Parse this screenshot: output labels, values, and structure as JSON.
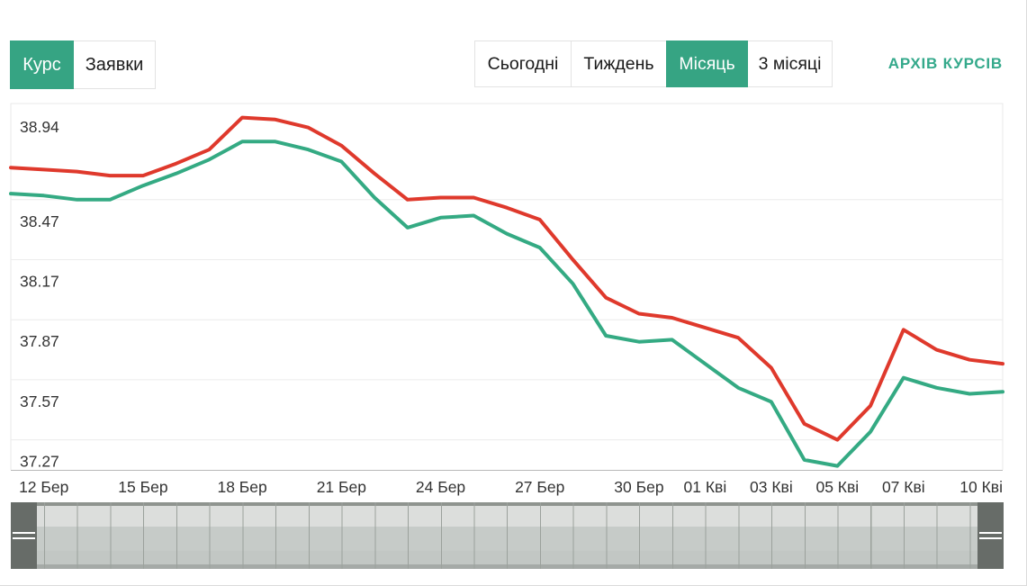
{
  "toggle": {
    "items": [
      {
        "label": "Курс",
        "active": true
      },
      {
        "label": "Заявки",
        "active": false
      }
    ]
  },
  "periods": {
    "items": [
      {
        "label": "Сьогодні",
        "active": false
      },
      {
        "label": "Тиждень",
        "active": false
      },
      {
        "label": "Місяць",
        "active": true
      },
      {
        "label": "3 місяці",
        "active": false
      }
    ]
  },
  "archive_link": {
    "label": "АРХІВ КУРСІВ"
  },
  "colors": {
    "accent_green": "#36a483",
    "link_green": "#34a98b",
    "red_line": "#df392c",
    "green_line": "#34aa83",
    "gridline": "#ececec",
    "navigator_handle": "#676c68"
  },
  "chart_data": {
    "type": "line",
    "title": "",
    "xlabel": "",
    "ylabel": "",
    "grid": true,
    "legend": "none",
    "ylim": [
      37.12,
      38.95
    ],
    "dates": [
      "11 Бер",
      "12 Бер",
      "13 Бер",
      "14 Бер",
      "15 Бер",
      "16 Бер",
      "17 Бер",
      "18 Бер",
      "19 Бер",
      "20 Бер",
      "21 Бер",
      "22 Бер",
      "23 Бер",
      "24 Бер",
      "25 Бер",
      "26 Бер",
      "27 Бер",
      "28 Бер",
      "29 Бер",
      "30 Бер",
      "31 Бер",
      "01 Кві",
      "02 Кві",
      "03 Кві",
      "04 Кві",
      "05 Кві",
      "06 Кві",
      "07 Кві",
      "08 Кві",
      "09 Кві",
      "10 Кві"
    ],
    "x_ticks": [
      {
        "k": 1,
        "label": "12 Бер"
      },
      {
        "k": 4,
        "label": "15 Бер"
      },
      {
        "k": 7,
        "label": "18 Бер"
      },
      {
        "k": 10,
        "label": "21 Бер"
      },
      {
        "k": 13,
        "label": "24 Бер"
      },
      {
        "k": 16,
        "label": "27 Бер"
      },
      {
        "k": 19,
        "label": "30 Бер"
      },
      {
        "k": 21,
        "label": "01 Кві"
      },
      {
        "k": 23,
        "label": "03 Кві"
      },
      {
        "k": 25,
        "label": "05 Кві"
      },
      {
        "k": 27,
        "label": "07 Кві"
      },
      {
        "k": 30,
        "label": "10 Кві"
      }
    ],
    "y_ticks": [
      {
        "value": 38.94,
        "label": "38.94"
      },
      {
        "value": 38.47,
        "label": "38.47"
      },
      {
        "value": 38.17,
        "label": "38.17"
      },
      {
        "value": 37.87,
        "label": "37.87"
      },
      {
        "value": 37.57,
        "label": "37.57"
      },
      {
        "value": 37.27,
        "label": "37.27"
      }
    ],
    "series": [
      {
        "name": "red-line-upper",
        "color": "#df392c",
        "values": [
          38.63,
          38.62,
          38.61,
          38.59,
          38.59,
          38.65,
          38.72,
          38.88,
          38.87,
          38.83,
          38.74,
          38.6,
          38.47,
          38.48,
          38.48,
          38.43,
          38.37,
          38.17,
          37.98,
          37.9,
          37.88,
          37.83,
          37.78,
          37.63,
          37.35,
          37.27,
          37.44,
          37.82,
          37.72,
          37.67,
          37.65
        ]
      },
      {
        "name": "green-line-lower",
        "color": "#34aa83",
        "values": [
          38.5,
          38.49,
          38.47,
          38.47,
          38.54,
          38.6,
          38.67,
          38.76,
          38.76,
          38.72,
          38.66,
          38.48,
          38.33,
          38.38,
          38.39,
          38.3,
          38.23,
          38.05,
          37.79,
          37.76,
          37.77,
          37.65,
          37.53,
          37.46,
          37.17,
          37.14,
          37.31,
          37.58,
          37.53,
          37.5,
          37.51
        ]
      }
    ]
  }
}
